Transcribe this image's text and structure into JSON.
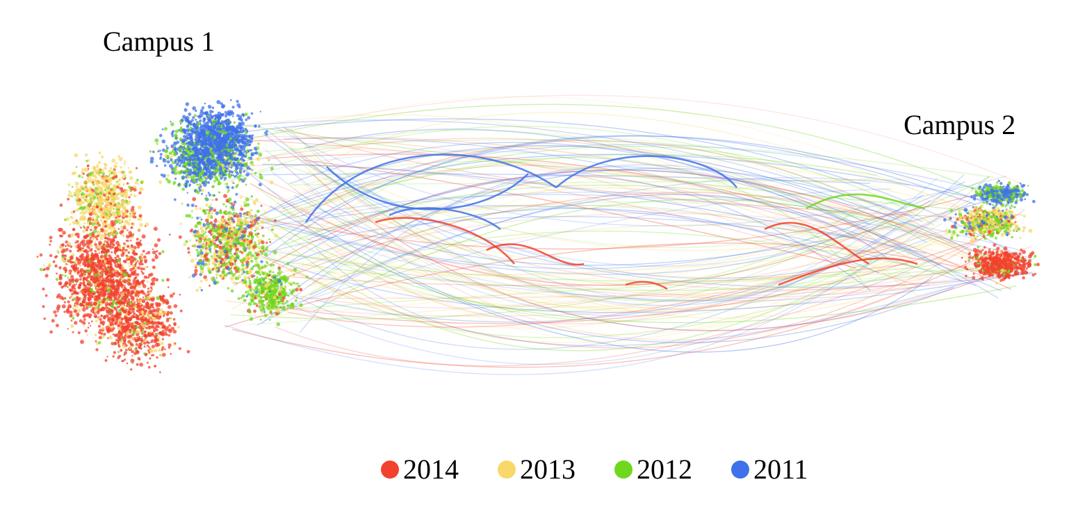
{
  "clusters": [
    {
      "label": "Campus 1"
    },
    {
      "label": "Campus 2"
    }
  ],
  "legend": [
    {
      "label": "2014",
      "color": "#f2412d"
    },
    {
      "label": "2013",
      "color": "#f8d86a"
    },
    {
      "label": "2012",
      "color": "#6fd81e"
    },
    {
      "label": "2011",
      "color": "#3f72ea"
    }
  ]
}
